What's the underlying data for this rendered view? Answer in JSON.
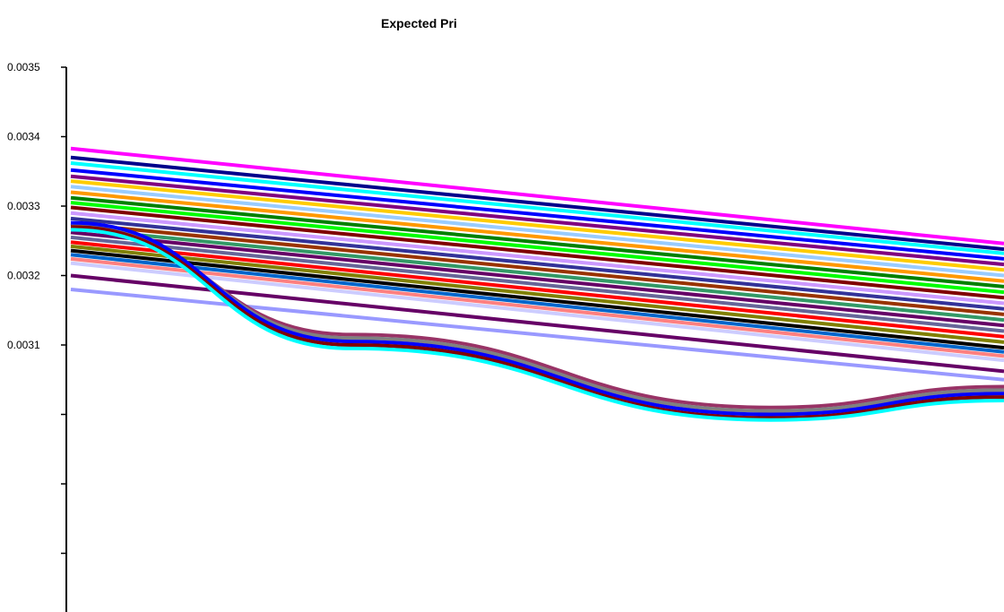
{
  "chart_data": {
    "type": "line",
    "title": "Expected Pri",
    "xlabel": "",
    "ylabel": "",
    "y_ticks": [
      {
        "value": 0.0035,
        "label": "0.0035"
      },
      {
        "value": 0.0034,
        "label": "0.0034"
      },
      {
        "value": 0.0033,
        "label": "0.0033"
      },
      {
        "value": 0.0032,
        "label": "0.0032"
      },
      {
        "value": 0.0031,
        "label": "0.0031"
      },
      {
        "value": 0.003,
        "label": ""
      },
      {
        "value": 0.0029,
        "label": ""
      },
      {
        "value": 0.0028,
        "label": ""
      },
      {
        "value": 0.0027,
        "label": ""
      }
    ],
    "ylim": [
      0.00266,
      0.0035
    ],
    "grid": false,
    "legend": "none",
    "note_series": "Densely stacked fan of many multicoloured curves; envelope values read off the y-axis.",
    "series": [
      {
        "color": "#ff00ff",
        "x": [
          0,
          1
        ],
        "y": [
          0.003383,
          0.003246
        ]
      },
      {
        "color": "#00008b",
        "x": [
          0,
          1
        ],
        "y": [
          0.00337,
          0.003238
        ]
      },
      {
        "color": "#00ffff",
        "x": [
          0,
          1
        ],
        "y": [
          0.003362,
          0.003232
        ]
      },
      {
        "color": "#0000ff",
        "x": [
          0,
          1
        ],
        "y": [
          0.003352,
          0.003224
        ]
      },
      {
        "color": "#800080",
        "x": [
          0,
          1
        ],
        "y": [
          0.003343,
          0.003216
        ]
      },
      {
        "color": "#ffcc00",
        "x": [
          0,
          1
        ],
        "y": [
          0.003336,
          0.003208
        ]
      },
      {
        "color": "#99ccff",
        "x": [
          0,
          1
        ],
        "y": [
          0.003328,
          0.0032
        ]
      },
      {
        "color": "#ff9900",
        "x": [
          0,
          1
        ],
        "y": [
          0.00332,
          0.003192
        ]
      },
      {
        "color": "#008000",
        "x": [
          0,
          1
        ],
        "y": [
          0.003312,
          0.003184
        ]
      },
      {
        "color": "#00ff00",
        "x": [
          0,
          1
        ],
        "y": [
          0.003305,
          0.003176
        ]
      },
      {
        "color": "#800000",
        "x": [
          0,
          1
        ],
        "y": [
          0.003298,
          0.003168
        ]
      },
      {
        "color": "#cc99ff",
        "x": [
          0,
          1
        ],
        "y": [
          0.00329,
          0.00316
        ]
      },
      {
        "color": "#333399",
        "x": [
          0,
          1
        ],
        "y": [
          0.003282,
          0.003152
        ]
      },
      {
        "color": "#993300",
        "x": [
          0,
          1
        ],
        "y": [
          0.003275,
          0.003144
        ]
      },
      {
        "color": "#339966",
        "x": [
          0,
          1
        ],
        "y": [
          0.003268,
          0.003136
        ]
      },
      {
        "color": "#660066",
        "x": [
          0,
          1
        ],
        "y": [
          0.003262,
          0.003128
        ]
      },
      {
        "color": "#666699",
        "x": [
          0,
          1
        ],
        "y": [
          0.003255,
          0.00312
        ]
      },
      {
        "color": "#ff0000",
        "x": [
          0,
          1
        ],
        "y": [
          0.003248,
          0.003112
        ]
      },
      {
        "color": "#808000",
        "x": [
          0,
          1
        ],
        "y": [
          0.003242,
          0.003104
        ]
      },
      {
        "color": "#000000",
        "x": [
          0,
          1
        ],
        "y": [
          0.003236,
          0.003096
        ]
      },
      {
        "color": "#0066cc",
        "x": [
          0,
          1
        ],
        "y": [
          0.00323,
          0.00309
        ]
      },
      {
        "color": "#ff8080",
        "x": [
          0,
          1
        ],
        "y": [
          0.003224,
          0.003084
        ]
      },
      {
        "color": "#ccccff",
        "x": [
          0,
          1
        ],
        "y": [
          0.003218,
          0.003078
        ]
      },
      {
        "color": "#660066",
        "x": [
          0,
          1
        ],
        "y": [
          0.0032,
          0.003062
        ]
      },
      {
        "color": "#9999ff",
        "x": [
          0,
          1
        ],
        "y": [
          0.00318,
          0.00305
        ]
      },
      {
        "color": "#993366",
        "x": [
          0,
          0.3,
          0.75,
          1
        ],
        "y": [
          0.003268,
          0.003115,
          0.00301,
          0.00304
        ]
      },
      {
        "color": "#808080",
        "x": [
          0,
          0.3,
          0.75,
          1
        ],
        "y": [
          0.003272,
          0.00311,
          0.003005,
          0.003035
        ]
      },
      {
        "color": "#0000ff",
        "x": [
          0,
          0.3,
          0.75,
          1
        ],
        "y": [
          0.003276,
          0.003105,
          0.003,
          0.00303
        ]
      },
      {
        "color": "#800000",
        "x": [
          0,
          0.3,
          0.75,
          1
        ],
        "y": [
          0.00327,
          0.0031,
          0.002995,
          0.003025
        ]
      },
      {
        "color": "#00ffff",
        "x": [
          0,
          0.3,
          0.75,
          1
        ],
        "y": [
          0.003266,
          0.003095,
          0.002992,
          0.00302
        ]
      }
    ]
  }
}
